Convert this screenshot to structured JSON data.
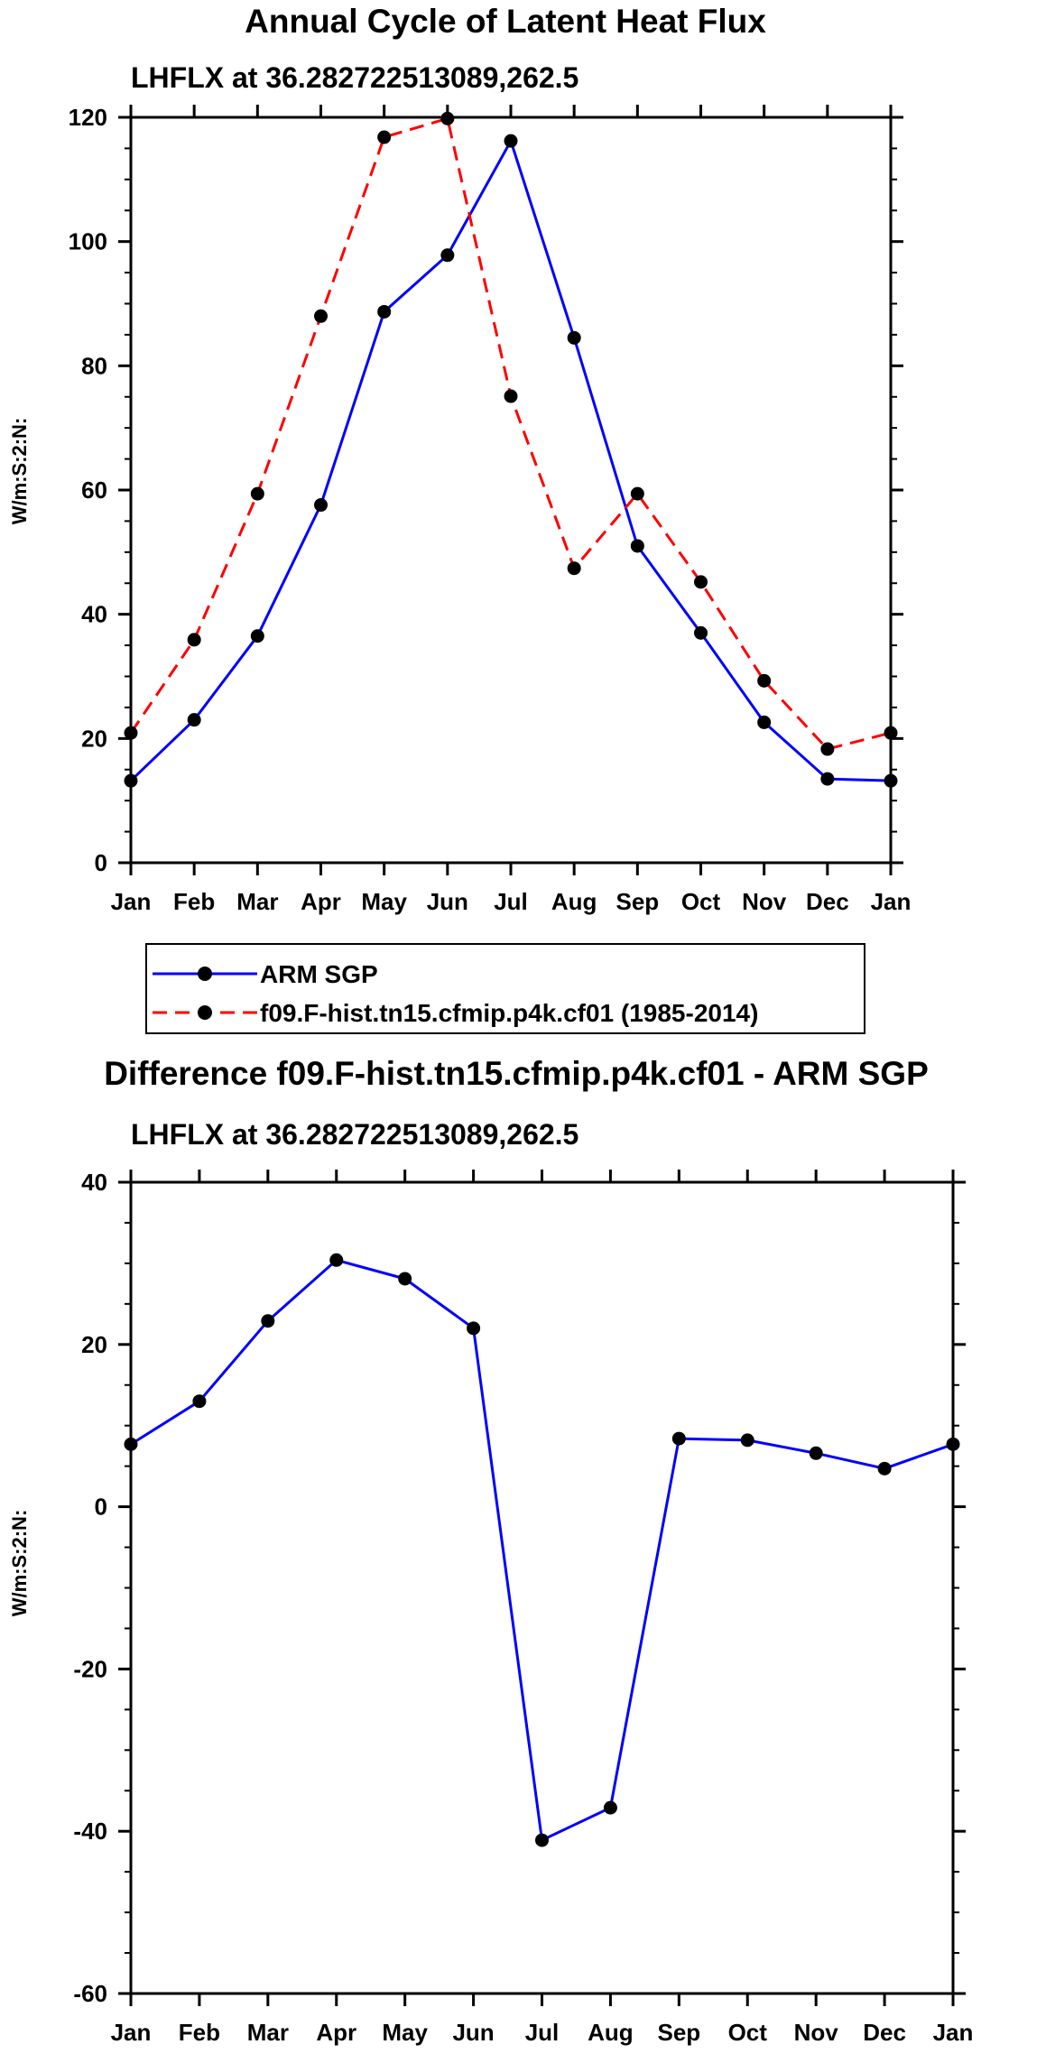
{
  "chart_data": [
    {
      "type": "line",
      "title": "Annual Cycle of Latent Heat Flux",
      "subtitle": "LHFLX at 36.282722513089,262.5",
      "xlabel": "",
      "ylabel": "W/m:S:2:N:",
      "categories": [
        "Jan",
        "Feb",
        "Mar",
        "Apr",
        "May",
        "Jun",
        "Jul",
        "Aug",
        "Sep",
        "Oct",
        "Nov",
        "Dec",
        "Jan"
      ],
      "ylim": [
        0,
        120
      ],
      "yticks": [
        0,
        20,
        40,
        60,
        80,
        100,
        120
      ],
      "yminor_step": 5,
      "legend_position": "below",
      "series": [
        {
          "name": "ARM SGP",
          "color": "#0000ff",
          "style": "solid",
          "values": [
            13.2,
            23.0,
            36.5,
            57.6,
            88.7,
            97.8,
            116.2,
            84.5,
            51.0,
            37.0,
            22.6,
            13.5,
            13.2
          ]
        },
        {
          "name": "f09.F-hist.tn15.cfmip.p4k.cf01 (1985-2014)",
          "color": "#ff0000",
          "style": "dashed",
          "values": [
            20.9,
            35.9,
            59.4,
            88.0,
            116.8,
            119.8,
            75.1,
            47.4,
            59.4,
            45.2,
            29.3,
            18.3,
            20.9
          ]
        }
      ]
    },
    {
      "type": "line",
      "title": "Difference f09.F-hist.tn15.cfmip.p4k.cf01 - ARM SGP",
      "subtitle": "LHFLX at 36.282722513089,262.5",
      "xlabel": "",
      "ylabel": "W/m:S:2:N:",
      "categories": [
        "Jan",
        "Feb",
        "Mar",
        "Apr",
        "May",
        "Jun",
        "Jul",
        "Aug",
        "Sep",
        "Oct",
        "Nov",
        "Dec",
        "Jan"
      ],
      "ylim": [
        -60,
        40
      ],
      "yticks": [
        -60,
        -40,
        -20,
        0,
        20,
        40
      ],
      "yminor_step": 5,
      "series": [
        {
          "name": "Difference",
          "color": "#0000ff",
          "style": "solid",
          "values": [
            7.7,
            13.0,
            22.9,
            30.4,
            28.1,
            22.0,
            -41.1,
            -37.1,
            8.4,
            8.2,
            6.6,
            4.7,
            7.7
          ]
        }
      ]
    }
  ]
}
